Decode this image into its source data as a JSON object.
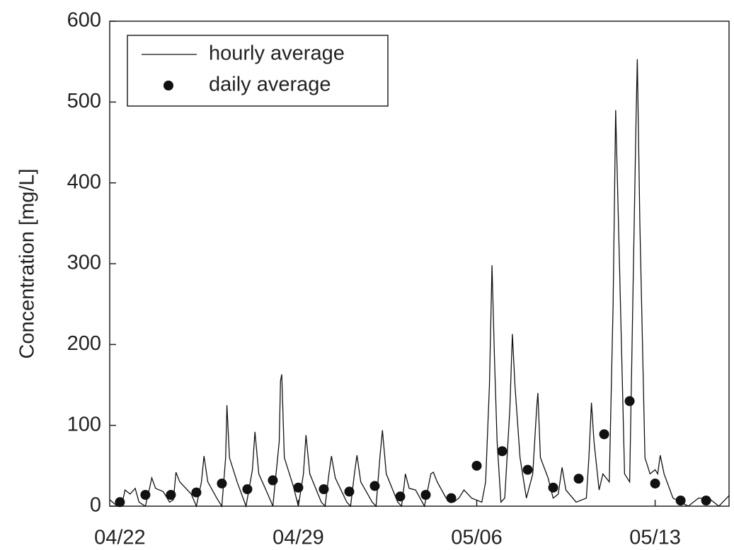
{
  "chart_data": {
    "type": "line",
    "ylabel": "Concentration [mg/L]",
    "xlim": [
      -0.4,
      23.9
    ],
    "ylim": [
      0,
      600
    ],
    "xticks": [
      {
        "value": 0,
        "label": "04/22"
      },
      {
        "value": 7,
        "label": "04/29"
      },
      {
        "value": 14,
        "label": "05/06"
      },
      {
        "value": 21,
        "label": "05/13"
      }
    ],
    "yticks": [
      0,
      100,
      200,
      300,
      400,
      500,
      600
    ],
    "legend": "upper left",
    "series": [
      {
        "name": "hourly average",
        "type": "line",
        "color": "#111111",
        "x": [
          -0.4,
          -0.1,
          0.1,
          0.2,
          0.4,
          0.6,
          0.75,
          1.0,
          1.15,
          1.25,
          1.4,
          1.7,
          1.95,
          2.1,
          2.2,
          2.35,
          2.8,
          3.0,
          3.2,
          3.3,
          3.45,
          3.8,
          4.0,
          4.15,
          4.2,
          4.3,
          4.6,
          4.95,
          5.2,
          5.3,
          5.45,
          5.8,
          6.0,
          6.25,
          6.3,
          6.35,
          6.45,
          6.8,
          7.0,
          7.2,
          7.3,
          7.45,
          7.9,
          8.05,
          8.2,
          8.3,
          8.45,
          8.9,
          9.05,
          9.2,
          9.3,
          9.45,
          9.9,
          10.05,
          10.2,
          10.3,
          10.45,
          10.9,
          11.05,
          11.15,
          11.2,
          11.35,
          11.6,
          11.95,
          12.2,
          12.3,
          12.45,
          12.8,
          13.1,
          13.3,
          13.5,
          13.8,
          14.2,
          14.35,
          14.5,
          14.6,
          14.7,
          14.8,
          14.95,
          15.1,
          15.3,
          15.4,
          15.5,
          15.7,
          15.95,
          16.2,
          16.35,
          16.4,
          16.5,
          16.8,
          17.0,
          17.2,
          17.35,
          17.5,
          17.9,
          18.3,
          18.4,
          18.5,
          18.6,
          18.8,
          18.95,
          19.2,
          19.35,
          19.45,
          19.6,
          19.8,
          20.0,
          20.15,
          20.25,
          20.3,
          20.4,
          20.6,
          20.8,
          21.0,
          21.1,
          21.2,
          21.35,
          21.7,
          22.0,
          22.3,
          22.7,
          23.1,
          23.5,
          23.9
        ],
        "values": [
          8,
          0,
          5,
          20,
          15,
          22,
          5,
          0,
          20,
          35,
          22,
          18,
          5,
          8,
          42,
          30,
          15,
          0,
          30,
          62,
          30,
          10,
          0,
          60,
          125,
          60,
          30,
          0,
          45,
          92,
          40,
          15,
          0,
          80,
          155,
          163,
          60,
          25,
          0,
          40,
          88,
          40,
          5,
          0,
          40,
          62,
          35,
          5,
          0,
          40,
          63,
          30,
          5,
          0,
          60,
          94,
          40,
          5,
          0,
          25,
          40,
          22,
          20,
          0,
          40,
          42,
          30,
          10,
          5,
          10,
          20,
          10,
          5,
          30,
          150,
          298,
          180,
          80,
          5,
          10,
          120,
          213,
          150,
          60,
          10,
          40,
          120,
          140,
          60,
          35,
          10,
          15,
          48,
          20,
          5,
          10,
          60,
          128,
          80,
          20,
          40,
          30,
          250,
          490,
          300,
          40,
          30,
          300,
          478,
          553,
          350,
          60,
          40,
          45,
          40,
          63,
          40,
          10,
          5,
          0,
          10,
          10,
          0,
          13
        ]
      },
      {
        "name": "daily average",
        "type": "scatter",
        "color": "#111111",
        "x": [
          0,
          1,
          2,
          3,
          4,
          5,
          6,
          7,
          8,
          9,
          10,
          11,
          12,
          13,
          14,
          15,
          16,
          17,
          18,
          19,
          20,
          21,
          22,
          23
        ],
        "values": [
          5,
          14,
          14,
          17,
          28,
          21,
          32,
          23,
          21,
          18,
          25,
          12,
          14,
          10,
          50,
          68,
          45,
          23,
          34,
          89,
          130,
          28,
          7,
          7
        ]
      }
    ]
  }
}
